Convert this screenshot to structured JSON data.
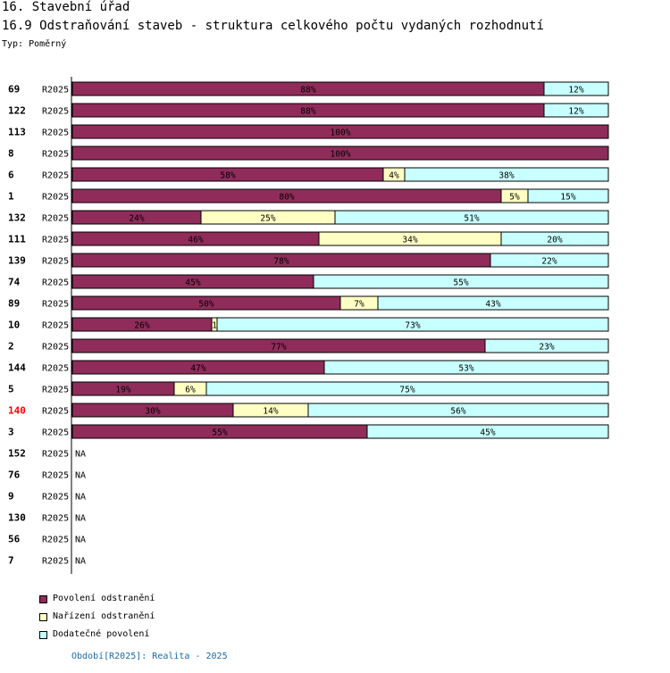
{
  "header": {
    "section": "16. Stavební úřad",
    "title": "16.9 Odstraňování staveb - struktura celkového počtu vydaných rozhodnutí",
    "type_label": "Typ: Poměrný"
  },
  "colors": {
    "series": [
      "#8f2c5a",
      "#ffffc4",
      "#c8ffff"
    ],
    "highlight_label": "#ff0000",
    "footer": "#1a6aa8"
  },
  "chart_data": {
    "type": "bar",
    "orientation": "horizontal",
    "stacked": true,
    "normalized_percent": true,
    "series_names": [
      "Povolení odstranění",
      "Nařízení odstranění",
      "Dodatečné povolení"
    ],
    "period_label": "R2025",
    "rows": [
      {
        "id": "69",
        "period": "R2025",
        "values": [
          88,
          0,
          12
        ],
        "labels": [
          "88%",
          "",
          "12%"
        ]
      },
      {
        "id": "122",
        "period": "R2025",
        "values": [
          88,
          0,
          12
        ],
        "labels": [
          "88%",
          "",
          "12%"
        ]
      },
      {
        "id": "113",
        "period": "R2025",
        "values": [
          100,
          0,
          0
        ],
        "labels": [
          "100%",
          "",
          ""
        ]
      },
      {
        "id": "8",
        "period": "R2025",
        "values": [
          100,
          0,
          0
        ],
        "labels": [
          "100%",
          "",
          ""
        ]
      },
      {
        "id": "6",
        "period": "R2025",
        "values": [
          58,
          4,
          38
        ],
        "labels": [
          "58%",
          "4%",
          "38%"
        ]
      },
      {
        "id": "1",
        "period": "R2025",
        "values": [
          80,
          5,
          15
        ],
        "labels": [
          "80%",
          "5%",
          "15%"
        ]
      },
      {
        "id": "132",
        "period": "R2025",
        "values": [
          24,
          25,
          51
        ],
        "labels": [
          "24%",
          "25%",
          "51%"
        ]
      },
      {
        "id": "111",
        "period": "R2025",
        "values": [
          46,
          34,
          20
        ],
        "labels": [
          "46%",
          "34%",
          "20%"
        ]
      },
      {
        "id": "139",
        "period": "R2025",
        "values": [
          78,
          0,
          22
        ],
        "labels": [
          "78%",
          "",
          "22%"
        ]
      },
      {
        "id": "74",
        "period": "R2025",
        "values": [
          45,
          0,
          55
        ],
        "labels": [
          "45%",
          "",
          "55%"
        ]
      },
      {
        "id": "89",
        "period": "R2025",
        "values": [
          50,
          7,
          43
        ],
        "labels": [
          "50%",
          "7%",
          "43%"
        ]
      },
      {
        "id": "10",
        "period": "R2025",
        "values": [
          26,
          1,
          73
        ],
        "labels": [
          "26%",
          "1",
          "73%"
        ]
      },
      {
        "id": "2",
        "period": "R2025",
        "values": [
          77,
          0,
          23
        ],
        "labels": [
          "77%",
          "",
          "23%"
        ]
      },
      {
        "id": "144",
        "period": "R2025",
        "values": [
          47,
          0,
          53
        ],
        "labels": [
          "47%",
          "",
          "53%"
        ]
      },
      {
        "id": "5",
        "period": "R2025",
        "values": [
          19,
          6,
          75
        ],
        "labels": [
          "19%",
          "6%",
          "75%"
        ]
      },
      {
        "id": "140",
        "period": "R2025",
        "values": [
          30,
          14,
          56
        ],
        "labels": [
          "30%",
          "14%",
          "56%"
        ],
        "highlight": true
      },
      {
        "id": "3",
        "period": "R2025",
        "values": [
          55,
          0,
          45
        ],
        "labels": [
          "55%",
          "",
          "45%"
        ]
      },
      {
        "id": "152",
        "period": "R2025",
        "values": null,
        "na_label": "NA"
      },
      {
        "id": "76",
        "period": "R2025",
        "values": null,
        "na_label": "NA"
      },
      {
        "id": "9",
        "period": "R2025",
        "values": null,
        "na_label": "NA"
      },
      {
        "id": "130",
        "period": "R2025",
        "values": null,
        "na_label": "NA"
      },
      {
        "id": "56",
        "period": "R2025",
        "values": null,
        "na_label": "NA"
      },
      {
        "id": "7",
        "period": "R2025",
        "values": null,
        "na_label": "NA"
      }
    ]
  },
  "legend": {
    "items": [
      "Povolení odstranění",
      "Nařízení odstranění",
      "Dodatečné povolení"
    ]
  },
  "footer": {
    "text": "Období[R2025]: Realita - 2025"
  }
}
